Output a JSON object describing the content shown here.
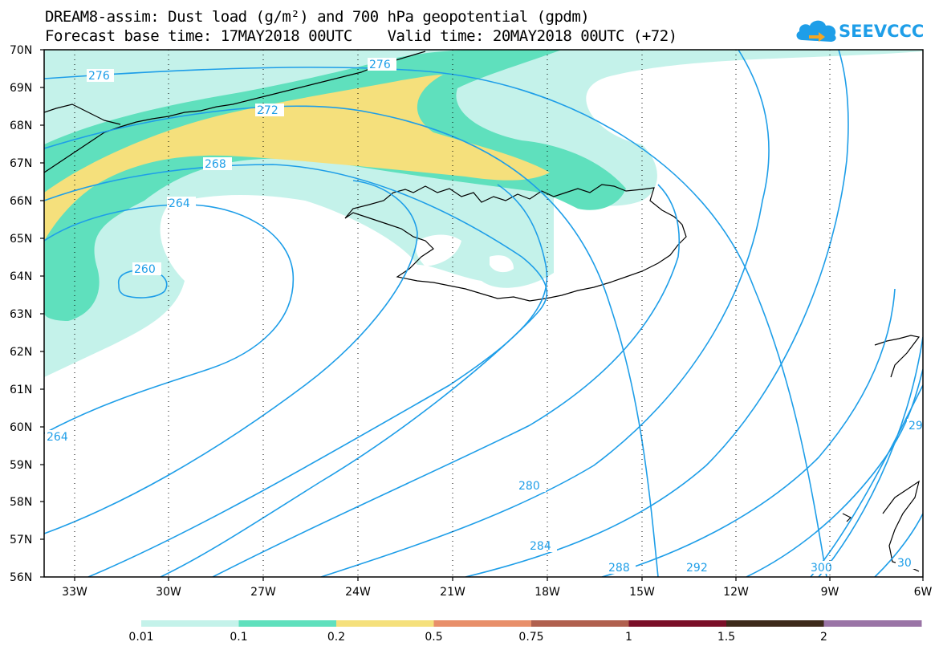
{
  "title": {
    "line1": "DREAM8-assim: Dust load (g/m²) and 700 hPa geopotential (gpdm)",
    "line2": "Forecast base time: 17MAY2018 00UTC    Valid time: 20MAY2018 00UTC (+72)"
  },
  "logo": {
    "text": "SEEVCCC",
    "icon": "cloud-icon",
    "color": "#1e9ee8"
  },
  "axes": {
    "lat_labels": [
      "70N",
      "69N",
      "68N",
      "67N",
      "66N",
      "65N",
      "64N",
      "63N",
      "62N",
      "61N",
      "60N",
      "59N",
      "58N",
      "57N",
      "56N"
    ],
    "lon_labels": [
      "33W",
      "30W",
      "27W",
      "24W",
      "21W",
      "18W",
      "15W",
      "12W",
      "9W",
      "6W"
    ]
  },
  "contour_labels": [
    "276",
    "276",
    "272",
    "268",
    "264",
    "260",
    "264",
    "280",
    "284",
    "288",
    "292",
    "300",
    "30",
    "29"
  ],
  "colorbar": {
    "labels": [
      "0.01",
      "0.1",
      "0.2",
      "0.5",
      "0.75",
      "1",
      "1.5",
      "2"
    ],
    "colors": [
      "#c4f2ea",
      "#5fe0bd",
      "#f5e07c",
      "#e88f6a",
      "#b0604e",
      "#7a0f28",
      "#3d2a1a",
      "#9a74a6"
    ]
  },
  "colors": {
    "contour": "#1e9ee8",
    "coast": "#000000"
  }
}
